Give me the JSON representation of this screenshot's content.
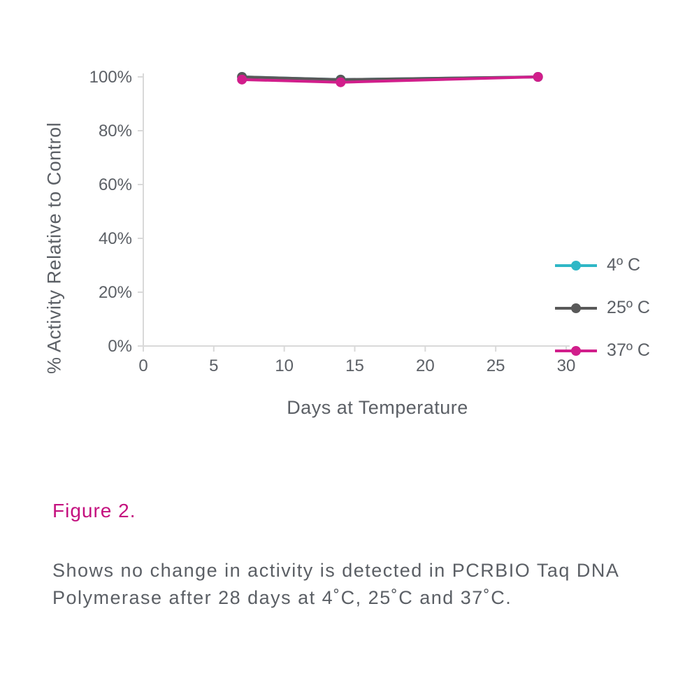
{
  "chart": {
    "type": "line",
    "background_color": "#ffffff",
    "axis_color": "#d9d9d9",
    "tick_label_color": "#5c6066",
    "tick_fontsize": 24,
    "xlabel": "Days at Temperature",
    "ylabel": "% Activity Relative to Control",
    "label_fontsize": 27,
    "xlim": [
      0,
      30
    ],
    "ylim": [
      0,
      100
    ],
    "xticks": [
      0,
      5,
      10,
      15,
      20,
      25,
      30
    ],
    "yticks": [
      0,
      20,
      40,
      60,
      80,
      100
    ],
    "ytick_suffix": "%",
    "line_width": 4,
    "marker_radius": 7,
    "series": [
      {
        "name": "4° C",
        "color": "#2fb7c6",
        "x": [
          7,
          14,
          28
        ],
        "y": [
          100,
          99,
          100
        ]
      },
      {
        "name": "25° C",
        "color": "#595959",
        "x": [
          7,
          14,
          28
        ],
        "y": [
          100,
          99,
          100
        ]
      },
      {
        "name": "37° C",
        "color": "#d11e8b",
        "x": [
          7,
          14,
          28
        ],
        "y": [
          99,
          98,
          100
        ]
      }
    ],
    "legend": {
      "items": [
        {
          "label": "4º C",
          "color": "#2fb7c6"
        },
        {
          "label": "25º C",
          "color": "#595959"
        },
        {
          "label": "37º C",
          "color": "#d11e8b"
        }
      ]
    }
  },
  "figure_label": "Figure 2.",
  "figure_label_color": "#c4117f",
  "caption": "Shows no change in activity is detected in PCRBIO Taq DNA Polymerase after 28 days at 4˚C, 25˚C and 37˚C."
}
